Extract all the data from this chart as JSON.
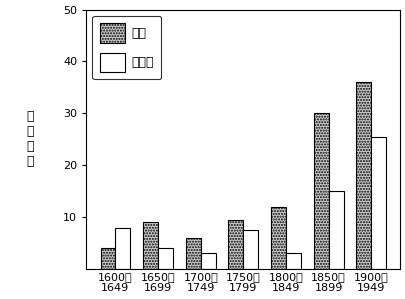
{
  "categories": [
    "1600～\n1649",
    "1650～\n1699",
    "1700～\n1749",
    "1750～\n1799",
    "1800～\n1849",
    "1850～\n1899",
    "1900～\n1949"
  ],
  "birds": [
    4,
    9,
    6,
    9.5,
    12,
    30,
    36
  ],
  "mammals": [
    8,
    4,
    3,
    7.5,
    3,
    15,
    25.5
  ],
  "ylim": [
    0,
    50
  ],
  "yticks": [
    10,
    20,
    30,
    40,
    50
  ],
  "ylabel_chars": [
    "灭",
    "绝",
    "种",
    "数"
  ],
  "bird_label": "鸟类",
  "mammal_label": "哺乳类",
  "bar_edge_color": "black",
  "background_color": "white",
  "bar_width": 0.35,
  "legend_fontsize": 9,
  "tick_fontsize": 8,
  "ylabel_fontsize": 9
}
